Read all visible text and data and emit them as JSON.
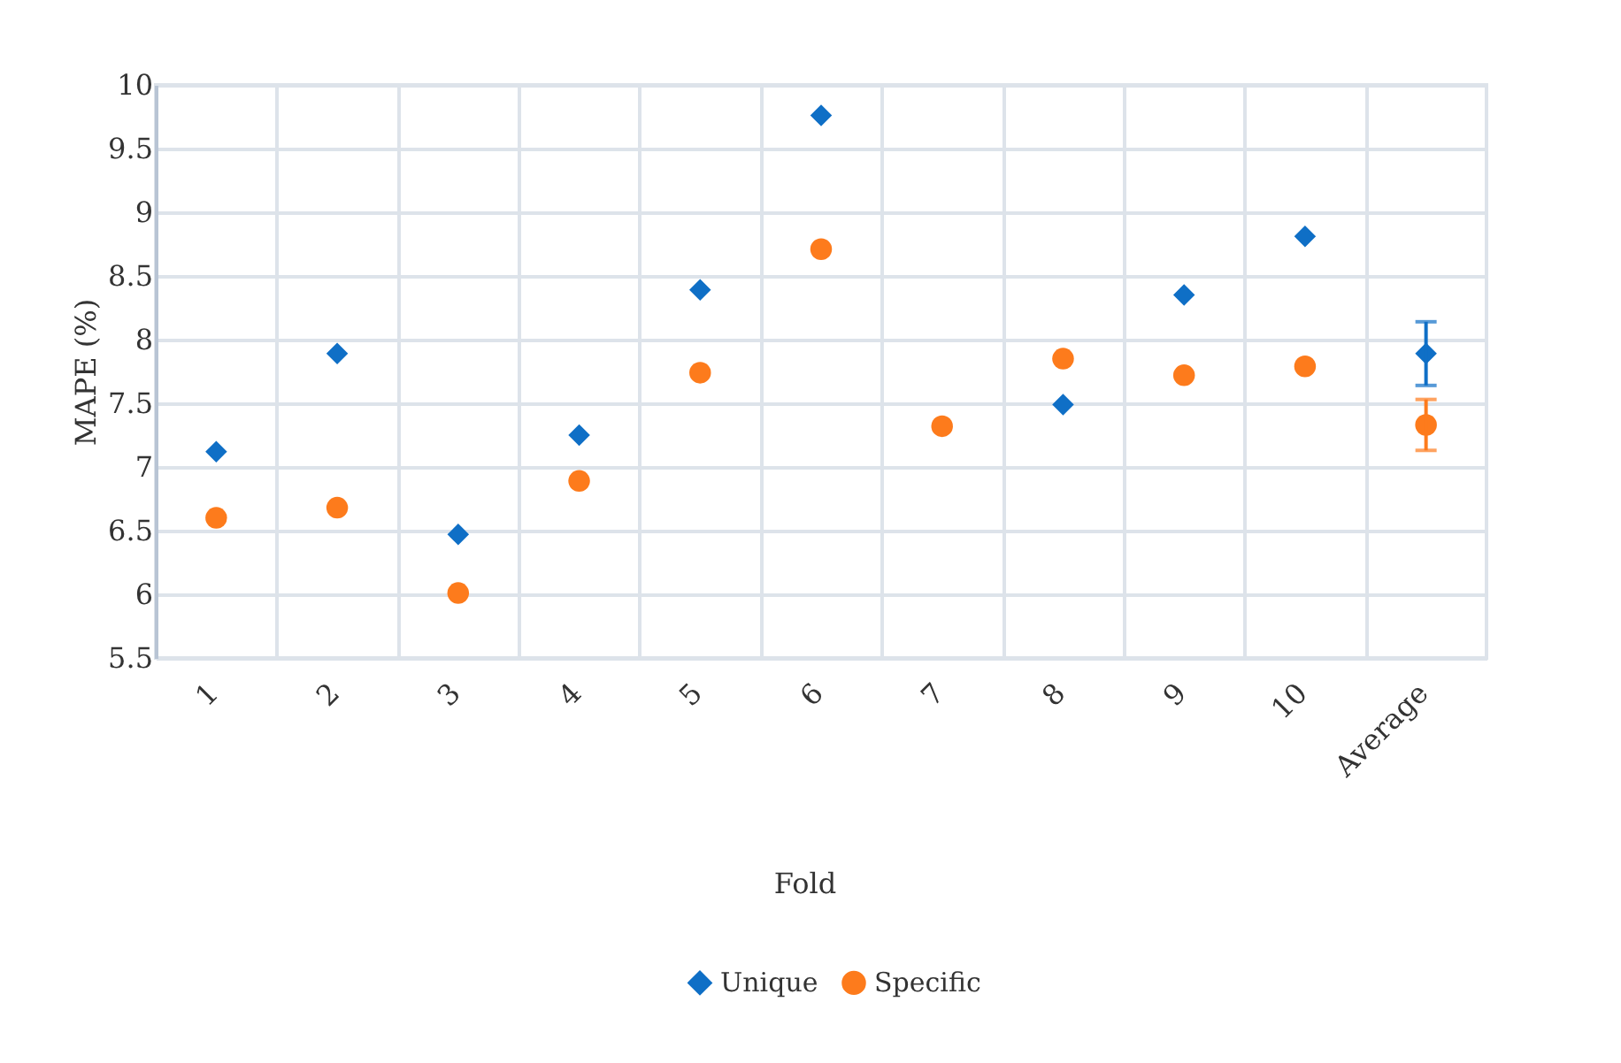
{
  "chart_data": {
    "type": "scatter",
    "xlabel": "Fold",
    "ylabel": "MAPE (%)",
    "categories": [
      "1",
      "2",
      "3",
      "4",
      "5",
      "6",
      "7",
      "8",
      "9",
      "10",
      "Average"
    ],
    "series": [
      {
        "name": "Unique",
        "color": "#0f6fc6",
        "marker": "diamond",
        "values": [
          7.12,
          7.89,
          6.47,
          7.25,
          8.39,
          9.76,
          null,
          7.49,
          8.35,
          8.81,
          7.89
        ],
        "errors": [
          null,
          null,
          null,
          null,
          null,
          null,
          null,
          null,
          null,
          null,
          0.25
        ]
      },
      {
        "name": "Specific",
        "color": "#fd7b1c",
        "marker": "circle",
        "values": [
          6.6,
          6.68,
          6.01,
          6.89,
          7.74,
          8.71,
          7.32,
          7.85,
          7.72,
          7.79,
          7.33
        ],
        "errors": [
          null,
          null,
          null,
          null,
          null,
          null,
          null,
          null,
          null,
          null,
          0.2
        ]
      }
    ],
    "ylim": [
      5.5,
      10
    ],
    "yticks": [
      5.5,
      6,
      6.5,
      7,
      7.5,
      8,
      8.5,
      9,
      9.5,
      10
    ],
    "grid": true,
    "legend": "bottom"
  }
}
